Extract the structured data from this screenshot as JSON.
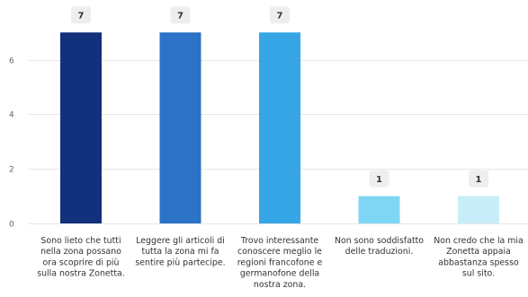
{
  "chart_data": {
    "type": "bar",
    "categories": [
      "Sono lieto che tutti nella zona possano ora scoprire di più sulla nostra Zonetta.",
      "Leggere gli articoli di tutta la zona mi fa sentire più partecipe.",
      "Trovo interessante conoscere meglio le regioni francofone e germanofone della nostra zona.",
      "Non sono soddisfatto delle traduzioni.",
      "Non credo che la mia Zonetta appaia abbastanza spesso sul sito."
    ],
    "category_lines": [
      [
        "Sono lieto che tutti",
        "nella zona possano",
        "ora scoprire di più",
        "sulla nostra Zonetta."
      ],
      [
        "Leggere gli articoli di",
        "tutta la zona mi fa",
        "sentire più partecipe."
      ],
      [
        "Trovo interessante",
        "conoscere meglio le",
        "regioni francofone e",
        "germanofone della",
        "nostra zona."
      ],
      [
        "Non sono soddisfatto",
        "delle traduzioni."
      ],
      [
        "Non credo che la mia",
        "Zonetta appaia",
        "abbastanza spesso",
        "sul sito."
      ]
    ],
    "values": [
      7,
      7,
      7,
      1,
      1
    ],
    "data_labels": [
      "7",
      "7",
      "7",
      "1",
      "1"
    ],
    "colors": [
      "#13307c",
      "#2c72c6",
      "#36a6e6",
      "#7fd6f4",
      "#c8eff9"
    ],
    "ylim": [
      0,
      7.4
    ],
    "yticks": [
      0,
      2,
      4,
      6
    ],
    "ytick_labels": [
      "0",
      "2",
      "4",
      "6"
    ],
    "grid": true,
    "gridline_color": "#e6e6e6",
    "data_label_box_color": "#eeeeee",
    "title": "",
    "xlabel": "",
    "ylabel": ""
  }
}
